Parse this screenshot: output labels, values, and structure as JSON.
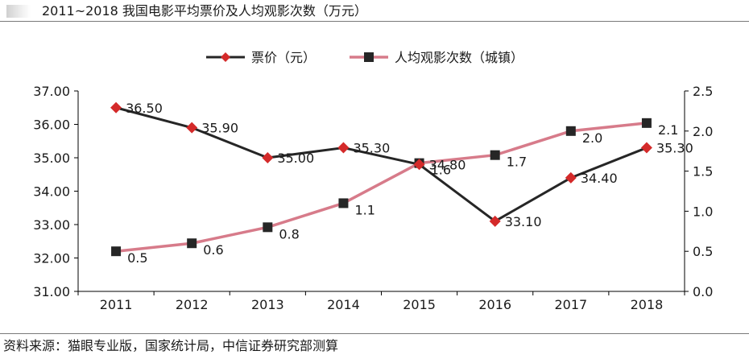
{
  "header": {
    "title": "2011~2018 我国电影平均票价及人均观影次数（万元）"
  },
  "footer": {
    "source": "资料来源：猫眼专业版，国家统计局，中信证券研究部测算"
  },
  "colors": {
    "price_line": "#262626",
    "price_marker": "#d42a2a",
    "views_line": "#d77b8a",
    "views_marker": "#262626"
  },
  "chart_data": {
    "type": "line",
    "title": "2011~2018 我国电影平均票价及人均观影次数（万元）",
    "categories": [
      "2011",
      "2012",
      "2013",
      "2014",
      "2015",
      "2016",
      "2017",
      "2018"
    ],
    "y_left": {
      "ylim": [
        31.0,
        37.0
      ],
      "ticks": [
        "31.00",
        "32.00",
        "33.00",
        "34.00",
        "35.00",
        "36.00",
        "37.00"
      ]
    },
    "y_right": {
      "ylim": [
        0.0,
        2.5
      ],
      "ticks": [
        "0.0",
        "0.5",
        "1.0",
        "1.5",
        "2.0",
        "2.5"
      ]
    },
    "legend_position": "top-center",
    "series": [
      {
        "name": "票价（元）",
        "axis": "left",
        "values": [
          36.5,
          35.9,
          35.0,
          35.3,
          34.8,
          33.1,
          34.4,
          35.3
        ],
        "labels": [
          "36.50",
          "35.90",
          "35.00",
          "35.30",
          "34.80",
          "33.10",
          "34.40",
          "35.30"
        ]
      },
      {
        "name": "人均观影次数（城镇）",
        "axis": "right",
        "values": [
          0.5,
          0.6,
          0.8,
          1.1,
          1.6,
          1.7,
          2.0,
          2.1
        ],
        "labels": [
          "0.5",
          "0.6",
          "0.8",
          "1.1",
          "1.6",
          "1.7",
          "2.0",
          "2.1"
        ]
      }
    ]
  }
}
